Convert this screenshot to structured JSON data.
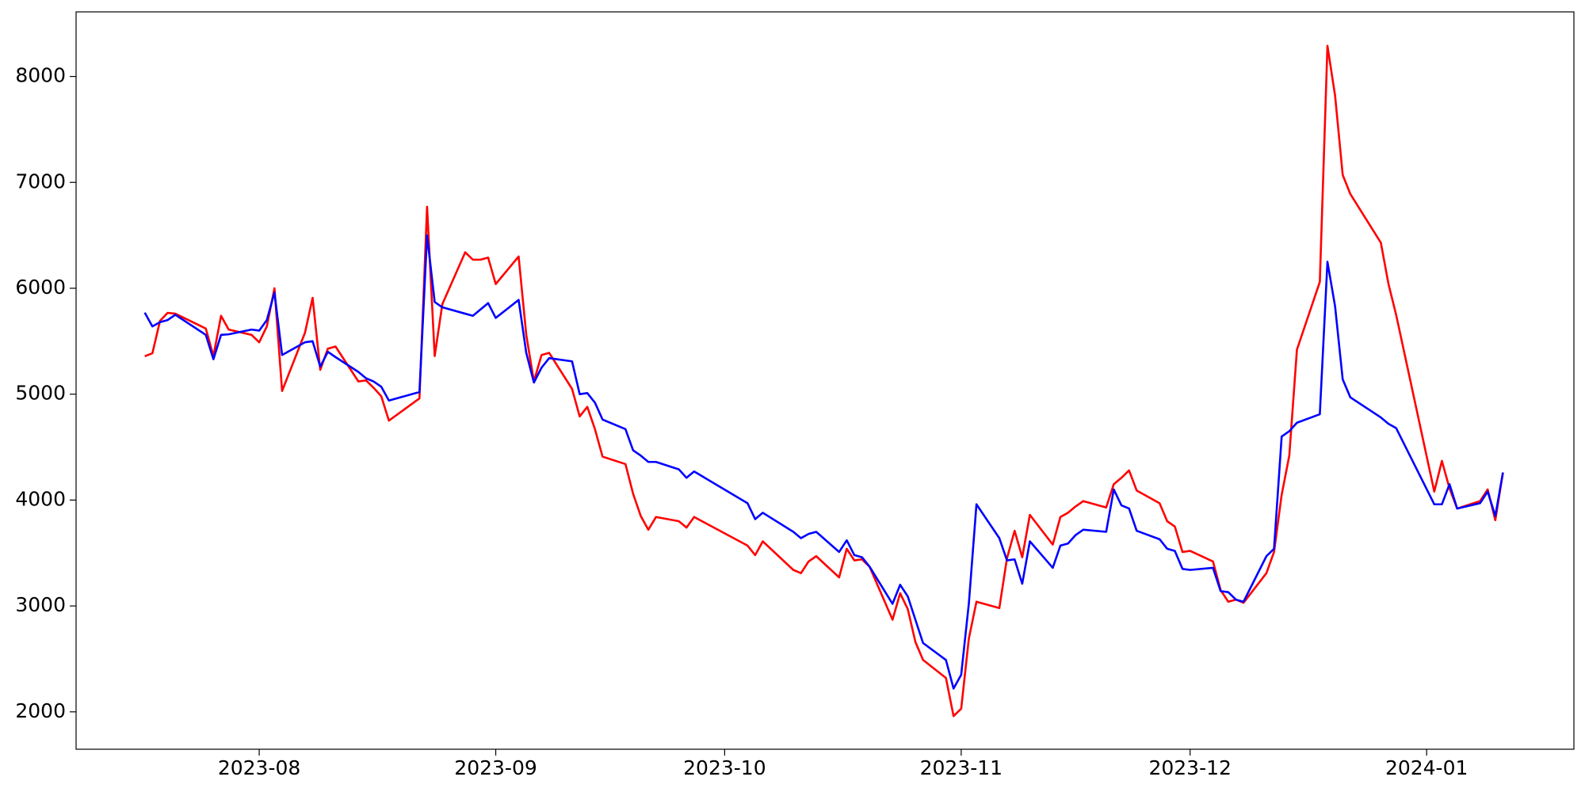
{
  "chart_data": {
    "type": "line",
    "x": [
      16,
      17,
      18,
      19,
      20,
      24,
      25,
      26,
      27,
      30,
      31,
      32,
      33,
      34,
      37,
      38,
      39,
      40,
      41,
      44,
      45,
      46,
      47,
      48,
      52,
      53,
      54,
      55,
      58,
      59,
      60,
      61,
      62,
      65,
      66,
      67,
      68,
      69,
      72,
      73,
      74,
      75,
      76,
      79,
      80,
      81,
      82,
      83,
      86,
      87,
      88,
      95,
      96,
      97,
      101,
      102,
      103,
      104,
      107,
      108,
      109,
      110,
      111,
      114,
      115,
      116,
      117,
      118,
      121,
      122,
      123,
      124,
      125,
      128,
      129,
      130,
      131,
      132,
      135,
      136,
      137,
      138,
      139,
      142,
      143,
      144,
      145,
      146,
      149,
      150,
      151,
      152,
      153,
      156,
      157,
      158,
      159,
      160,
      163,
      164,
      165,
      166,
      167,
      170,
      171,
      172,
      173,
      174,
      178,
      179,
      180,
      185,
      186,
      187,
      188,
      191,
      192,
      193,
      194
    ],
    "series": [
      {
        "color": "#ff0000",
        "values": [
          5358,
          5386,
          5692,
          5768,
          5760,
          5620,
          5360,
          5740,
          5610,
          5560,
          5490,
          5640,
          6000,
          5030,
          5580,
          5910,
          5230,
          5430,
          5450,
          5120,
          5130,
          5060,
          4980,
          4750,
          4960,
          6770,
          5360,
          5850,
          6340,
          6270,
          6270,
          6290,
          6040,
          6300,
          5560,
          5120,
          5370,
          5390,
          5050,
          4790,
          4880,
          4670,
          4410,
          4340,
          4060,
          3850,
          3720,
          3840,
          3800,
          3740,
          3840,
          3570,
          3480,
          3610,
          3340,
          3310,
          3420,
          3470,
          3270,
          3540,
          3430,
          3440,
          3370,
          2870,
          3120,
          2970,
          2660,
          2490,
          2320,
          1960,
          2030,
          2690,
          3040,
          2980,
          3450,
          3710,
          3460,
          3860,
          3580,
          3840,
          3880,
          3940,
          3990,
          3930,
          4150,
          4210,
          4280,
          4090,
          3970,
          3800,
          3750,
          3510,
          3520,
          3420,
          3150,
          3040,
          3060,
          3030,
          3310,
          3510,
          4050,
          4420,
          5420,
          6060,
          8290,
          7820,
          7070,
          6890,
          6430,
          6040,
          5750,
          4080,
          4370,
          4110,
          3920,
          3990,
          4100,
          3810,
          4260
        ]
      },
      {
        "color": "#0000ff",
        "values": [
          5770,
          5640,
          5680,
          5700,
          5750,
          5560,
          5330,
          5560,
          5565,
          5610,
          5600,
          5700,
          5960,
          5370,
          5490,
          5500,
          5260,
          5400,
          5350,
          5210,
          5150,
          5120,
          5070,
          4940,
          5020,
          6500,
          5870,
          5820,
          5760,
          5740,
          5800,
          5860,
          5720,
          5890,
          5390,
          5110,
          5250,
          5340,
          5310,
          5000,
          5010,
          4920,
          4760,
          4670,
          4470,
          4420,
          4360,
          4360,
          4290,
          4210,
          4270,
          3970,
          3820,
          3880,
          3700,
          3640,
          3680,
          3700,
          3510,
          3620,
          3480,
          3460,
          3370,
          3020,
          3200,
          3090,
          2870,
          2650,
          2490,
          2220,
          2350,
          3020,
          3960,
          3640,
          3430,
          3440,
          3210,
          3610,
          3360,
          3570,
          3590,
          3670,
          3720,
          3700,
          4100,
          3950,
          3920,
          3710,
          3630,
          3540,
          3520,
          3350,
          3340,
          3360,
          3140,
          3130,
          3060,
          3040,
          3470,
          3540,
          4600,
          4650,
          4730,
          4810,
          6250,
          5830,
          5140,
          4970,
          4780,
          4720,
          4680,
          3960,
          3960,
          4150,
          3920,
          3970,
          4080,
          3850,
          4260
        ]
      }
    ],
    "xlim": [
      7.0,
      203.3
    ],
    "xticks": [
      {
        "value": 31,
        "label": "2023-08"
      },
      {
        "value": 62,
        "label": "2023-09"
      },
      {
        "value": 92,
        "label": "2023-10"
      },
      {
        "value": 123,
        "label": "2023-11"
      },
      {
        "value": 153,
        "label": "2023-12"
      },
      {
        "value": 184,
        "label": "2024-01"
      }
    ],
    "ylim": [
      1647,
      8610
    ],
    "yticks": [
      2000,
      3000,
      4000,
      5000,
      6000,
      7000,
      8000
    ],
    "grid": false
  }
}
